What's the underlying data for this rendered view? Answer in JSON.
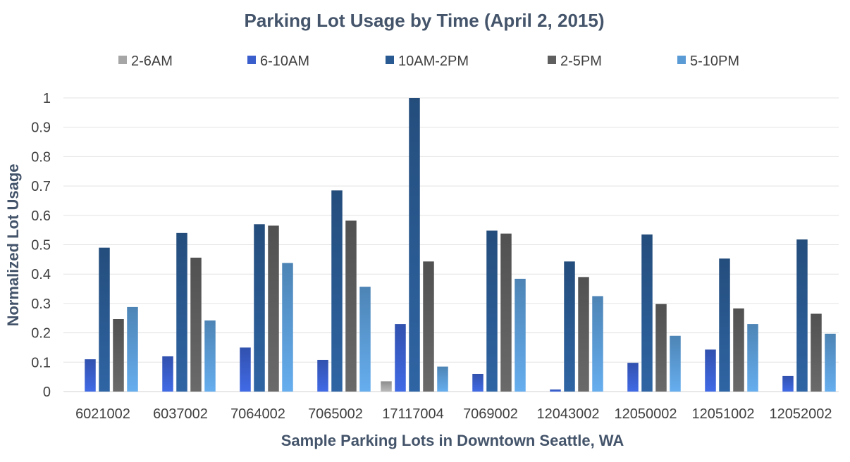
{
  "chart_data": {
    "type": "bar",
    "title": "Parking Lot Usage by Time (April 2, 2015)",
    "xlabel": "Sample Parking Lots in Downtown Seattle, WA",
    "ylabel": "Normalized Lot Usage",
    "ylim": [
      0,
      1
    ],
    "yticks": [
      "0",
      "0.1",
      "0.2",
      "0.3",
      "0.4",
      "0.5",
      "0.6",
      "0.7",
      "0.8",
      "0.9",
      "1"
    ],
    "grid": true,
    "legend_position": "top",
    "categories": [
      "6021002",
      "6037002",
      "7064002",
      "7065002",
      "17117004",
      "7069002",
      "12043002",
      "12050002",
      "12051002",
      "12052002"
    ],
    "series": [
      {
        "name": "2-6AM",
        "color": "#a6a6a6",
        "values": [
          0,
          0,
          0,
          0,
          0.035,
          0,
          0,
          0,
          0,
          0
        ]
      },
      {
        "name": "6-10AM",
        "color": "#3a5fcd",
        "values": [
          0.11,
          0.12,
          0.15,
          0.108,
          0.23,
          0.06,
          0.007,
          0.098,
          0.143,
          0.053
        ]
      },
      {
        "name": "10AM-2PM",
        "color": "#2a5a92",
        "values": [
          0.49,
          0.54,
          0.57,
          0.685,
          1.0,
          0.548,
          0.443,
          0.535,
          0.453,
          0.518
        ]
      },
      {
        "name": "2-5PM",
        "color": "#5f5f5f",
        "values": [
          0.247,
          0.456,
          0.565,
          0.582,
          0.443,
          0.538,
          0.39,
          0.298,
          0.283,
          0.265
        ]
      },
      {
        "name": "5-10PM",
        "color": "#5b9bd5",
        "values": [
          0.288,
          0.242,
          0.438,
          0.357,
          0.085,
          0.384,
          0.325,
          0.19,
          0.23,
          0.197
        ]
      }
    ]
  }
}
